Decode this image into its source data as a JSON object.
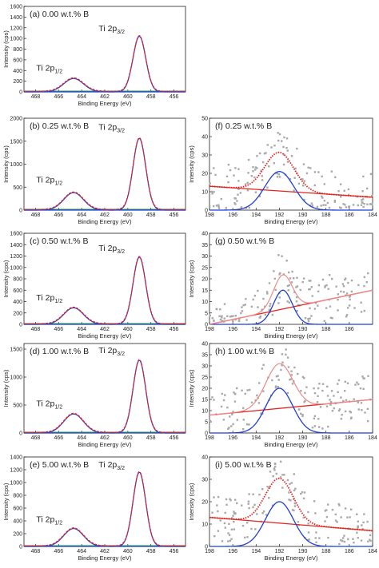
{
  "figure": {
    "panels": [
      {
        "id": "a",
        "title": "(a) 0.00 w.t.% B",
        "row": 0,
        "col": 0
      },
      {
        "id": "b",
        "title": "(b) 0.25 w.t.% B",
        "row": 1,
        "col": 0
      },
      {
        "id": "c",
        "title": "(c) 0.50 w.t.% B",
        "row": 2,
        "col": 0
      },
      {
        "id": "d",
        "title": "(d) 1.00 w.t.% B",
        "row": 3,
        "col": 0
      },
      {
        "id": "e",
        "title": "(e) 5.00 w.t.% B",
        "row": 4,
        "col": 0
      },
      {
        "id": "f",
        "title": "(f) 0.25 w.t.% B",
        "row": 1,
        "col": 1
      },
      {
        "id": "g",
        "title": "(g) 0.50 w.t.% B",
        "row": 2,
        "col": 1
      },
      {
        "id": "h",
        "title": "(h) 1.00 w.t.% B",
        "row": 3,
        "col": 1
      },
      {
        "id": "i",
        "title": "(i) 5.00 w.t.% B",
        "row": 4,
        "col": 1
      }
    ],
    "xlabel": "Binding Energy (eV)",
    "ylabel": "Intensity (cps)",
    "peak_labels": {
      "ti_main": "Ti 2p",
      "ti_half": "1/2",
      "ti_three_half": "3/2"
    },
    "colors": {
      "fit": "#e8211c",
      "envelope_light": "#f08a8a",
      "component": "#1f3fd6",
      "baseline": "#2ea043",
      "data": "#a9a9a9"
    }
  },
  "chart_data": [
    {
      "id": "a",
      "type": "line",
      "title": "(a) 0.00 w.t.% B",
      "xlabel": "Binding Energy (eV)",
      "ylabel": "Intensity (cps)",
      "xlim": [
        469,
        455
      ],
      "ylim": [
        0,
        1600
      ],
      "xticks": [
        468,
        466,
        464,
        462,
        460,
        458,
        456
      ],
      "yticks": [
        0,
        200,
        400,
        600,
        800,
        1000,
        1200,
        1400,
        1600
      ],
      "peaks": [
        {
          "label": "Ti 2p3/2",
          "center": 459.0,
          "height": 1040,
          "width": 0.55
        },
        {
          "label": "Ti 2p1/2",
          "center": 464.7,
          "height": 250,
          "width": 0.85
        }
      ],
      "annotations": [
        {
          "text": "Ti 2p",
          "sub": "3/2",
          "x": 461.4,
          "y": 1140
        },
        {
          "text": "Ti 2p",
          "sub": "1/2",
          "x": 466.8,
          "y": 400
        }
      ]
    },
    {
      "id": "b",
      "type": "line",
      "title": "(b) 0.25 w.t.% B",
      "xlabel": "Binding Energy (eV)",
      "ylabel": "Intensity (cps)",
      "xlim": [
        469,
        455
      ],
      "ylim": [
        0,
        2000
      ],
      "xticks": [
        468,
        466,
        464,
        462,
        460,
        458,
        456
      ],
      "yticks": [
        0,
        500,
        1000,
        1500,
        2000
      ],
      "peaks": [
        {
          "label": "Ti 2p3/2",
          "center": 459.0,
          "height": 1560,
          "width": 0.55
        },
        {
          "label": "Ti 2p1/2",
          "center": 464.7,
          "height": 380,
          "width": 0.85
        }
      ],
      "annotations": [
        {
          "text": "Ti 2p",
          "sub": "3/2",
          "x": 461.4,
          "y": 1750
        },
        {
          "text": "Ti 2p",
          "sub": "1/2",
          "x": 466.8,
          "y": 600
        }
      ]
    },
    {
      "id": "c",
      "type": "line",
      "title": "(c) 0.50 w.t.% B",
      "xlabel": "Binding Energy (eV)",
      "ylabel": "Intensity (cps)",
      "xlim": [
        469,
        455
      ],
      "ylim": [
        0,
        1600
      ],
      "xticks": [
        468,
        466,
        464,
        462,
        460,
        458,
        456
      ],
      "yticks": [
        0,
        200,
        400,
        600,
        800,
        1000,
        1200,
        1400,
        1600
      ],
      "peaks": [
        {
          "label": "Ti 2p3/2",
          "center": 459.0,
          "height": 1180,
          "width": 0.55
        },
        {
          "label": "Ti 2p1/2",
          "center": 464.7,
          "height": 290,
          "width": 0.85
        }
      ],
      "annotations": [
        {
          "text": "Ti 2p",
          "sub": "3/2",
          "x": 461.4,
          "y": 1290
        },
        {
          "text": "Ti 2p",
          "sub": "1/2",
          "x": 466.8,
          "y": 420
        }
      ]
    },
    {
      "id": "d",
      "type": "line",
      "title": "(d) 1.00 w.t.% B",
      "xlabel": "Binding Energy (eV)",
      "ylabel": "Intensity (cps)",
      "xlim": [
        469,
        455
      ],
      "ylim": [
        0,
        1600
      ],
      "xticks": [
        468,
        466,
        464,
        462,
        460,
        458,
        456
      ],
      "yticks": [
        0,
        500,
        1000,
        1500
      ],
      "peaks": [
        {
          "label": "Ti 2p3/2",
          "center": 459.0,
          "height": 1300,
          "width": 0.55
        },
        {
          "label": "Ti 2p1/2",
          "center": 464.7,
          "height": 340,
          "width": 0.85
        }
      ],
      "annotations": [
        {
          "text": "Ti 2p",
          "sub": "3/2",
          "x": 461.4,
          "y": 1430
        },
        {
          "text": "Ti 2p",
          "sub": "1/2",
          "x": 466.8,
          "y": 480
        }
      ]
    },
    {
      "id": "e",
      "type": "line",
      "title": "(e) 5.00 w.t.% B",
      "xlabel": "Binding Energy (eV)",
      "ylabel": "Intensity (cps)",
      "xlim": [
        469,
        455
      ],
      "ylim": [
        0,
        1400
      ],
      "xticks": [
        468,
        466,
        464,
        462,
        460,
        458,
        456
      ],
      "yticks": [
        0,
        200,
        400,
        600,
        800,
        1000,
        1200,
        1400
      ],
      "peaks": [
        {
          "label": "Ti 2p3/2",
          "center": 459.0,
          "height": 1160,
          "width": 0.55
        },
        {
          "label": "Ti 2p1/2",
          "center": 464.7,
          "height": 280,
          "width": 0.85
        }
      ],
      "annotations": [
        {
          "text": "Ti 2p",
          "sub": "3/2",
          "x": 461.4,
          "y": 1240
        },
        {
          "text": "Ti 2p",
          "sub": "1/2",
          "x": 466.8,
          "y": 380
        }
      ]
    },
    {
      "id": "f",
      "type": "scatter",
      "title": "(f) 0.25 w.t.% B",
      "xlabel": "Binding Energy (eV)",
      "ylabel": "Intensity (cps)",
      "xlim": [
        198,
        184
      ],
      "ylim": [
        0,
        50
      ],
      "xticks": [
        198,
        196,
        194,
        192,
        190,
        188,
        186,
        184
      ],
      "yticks": [
        0,
        10,
        20,
        30,
        40,
        50
      ],
      "fit": {
        "center": 192.0,
        "height": 21,
        "width": 1.25,
        "baseline_start": 13,
        "baseline_end": 7,
        "style": "dotted"
      }
    },
    {
      "id": "g",
      "type": "scatter",
      "title": "(g) 0.50 w.t.% B",
      "xlabel": "Binding Energy (eV)",
      "ylabel": "Intensity (cps)",
      "xlim": [
        198,
        184
      ],
      "ylim": [
        0,
        40
      ],
      "xticks": [
        198,
        196,
        194,
        192,
        190,
        188,
        186
      ],
      "yticks": [
        0,
        5,
        10,
        15,
        20,
        25,
        30,
        35,
        40
      ],
      "fit": {
        "center": 191.7,
        "height": 15,
        "width": 0.8,
        "baseline_start": 0,
        "baseline_end": 15,
        "style": "solid"
      }
    },
    {
      "id": "h",
      "type": "scatter",
      "title": "(h) 1.00 w.t.% B",
      "xlabel": "Binding Energy (eV)",
      "ylabel": "Intensity (cps)",
      "xlim": [
        198,
        184
      ],
      "ylim": [
        0,
        40
      ],
      "xticks": [
        198,
        196,
        194,
        192,
        190,
        188,
        186,
        184
      ],
      "yticks": [
        0,
        5,
        10,
        15,
        20,
        25,
        30,
        35,
        40
      ],
      "fit": {
        "center": 192.0,
        "height": 20,
        "width": 1.15,
        "baseline_start": 8,
        "baseline_end": 15,
        "style": "solid"
      }
    },
    {
      "id": "i",
      "type": "scatter",
      "title": "(i) 5.00 w.t.% B",
      "xlabel": "Binding Energy (eV)",
      "ylabel": "Intensity (cps)",
      "xlim": [
        198,
        184
      ],
      "ylim": [
        0,
        40
      ],
      "xticks": [
        198,
        196,
        194,
        192,
        190,
        188,
        186,
        184
      ],
      "yticks": [
        0,
        10,
        20,
        30,
        40
      ],
      "fit": {
        "center": 192.0,
        "height": 20,
        "width": 1.2,
        "baseline_start": 13,
        "baseline_end": 7,
        "style": "dotted"
      }
    }
  ]
}
